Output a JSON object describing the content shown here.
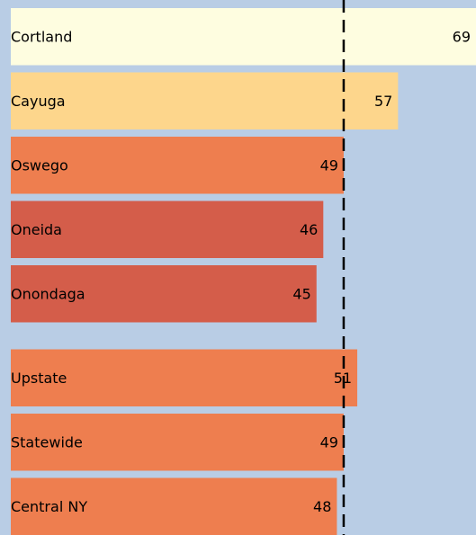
{
  "chart_data": {
    "type": "barh",
    "categories": [
      "Cortland",
      "Cayuga",
      "Oswego",
      "Oneida",
      "Onondaga",
      "Upstate",
      "Statewide",
      "Central NY"
    ],
    "values": [
      69,
      57,
      49,
      46,
      45,
      51,
      49,
      48
    ],
    "colors": [
      "#fefde0",
      "#fdd68c",
      "#ee7e4f",
      "#d45d4a",
      "#d45d4a",
      "#ee7e4f",
      "#ee7e4f",
      "#ee7e4f"
    ],
    "xlim": [
      0,
      70
    ],
    "reference_line": 49
  }
}
